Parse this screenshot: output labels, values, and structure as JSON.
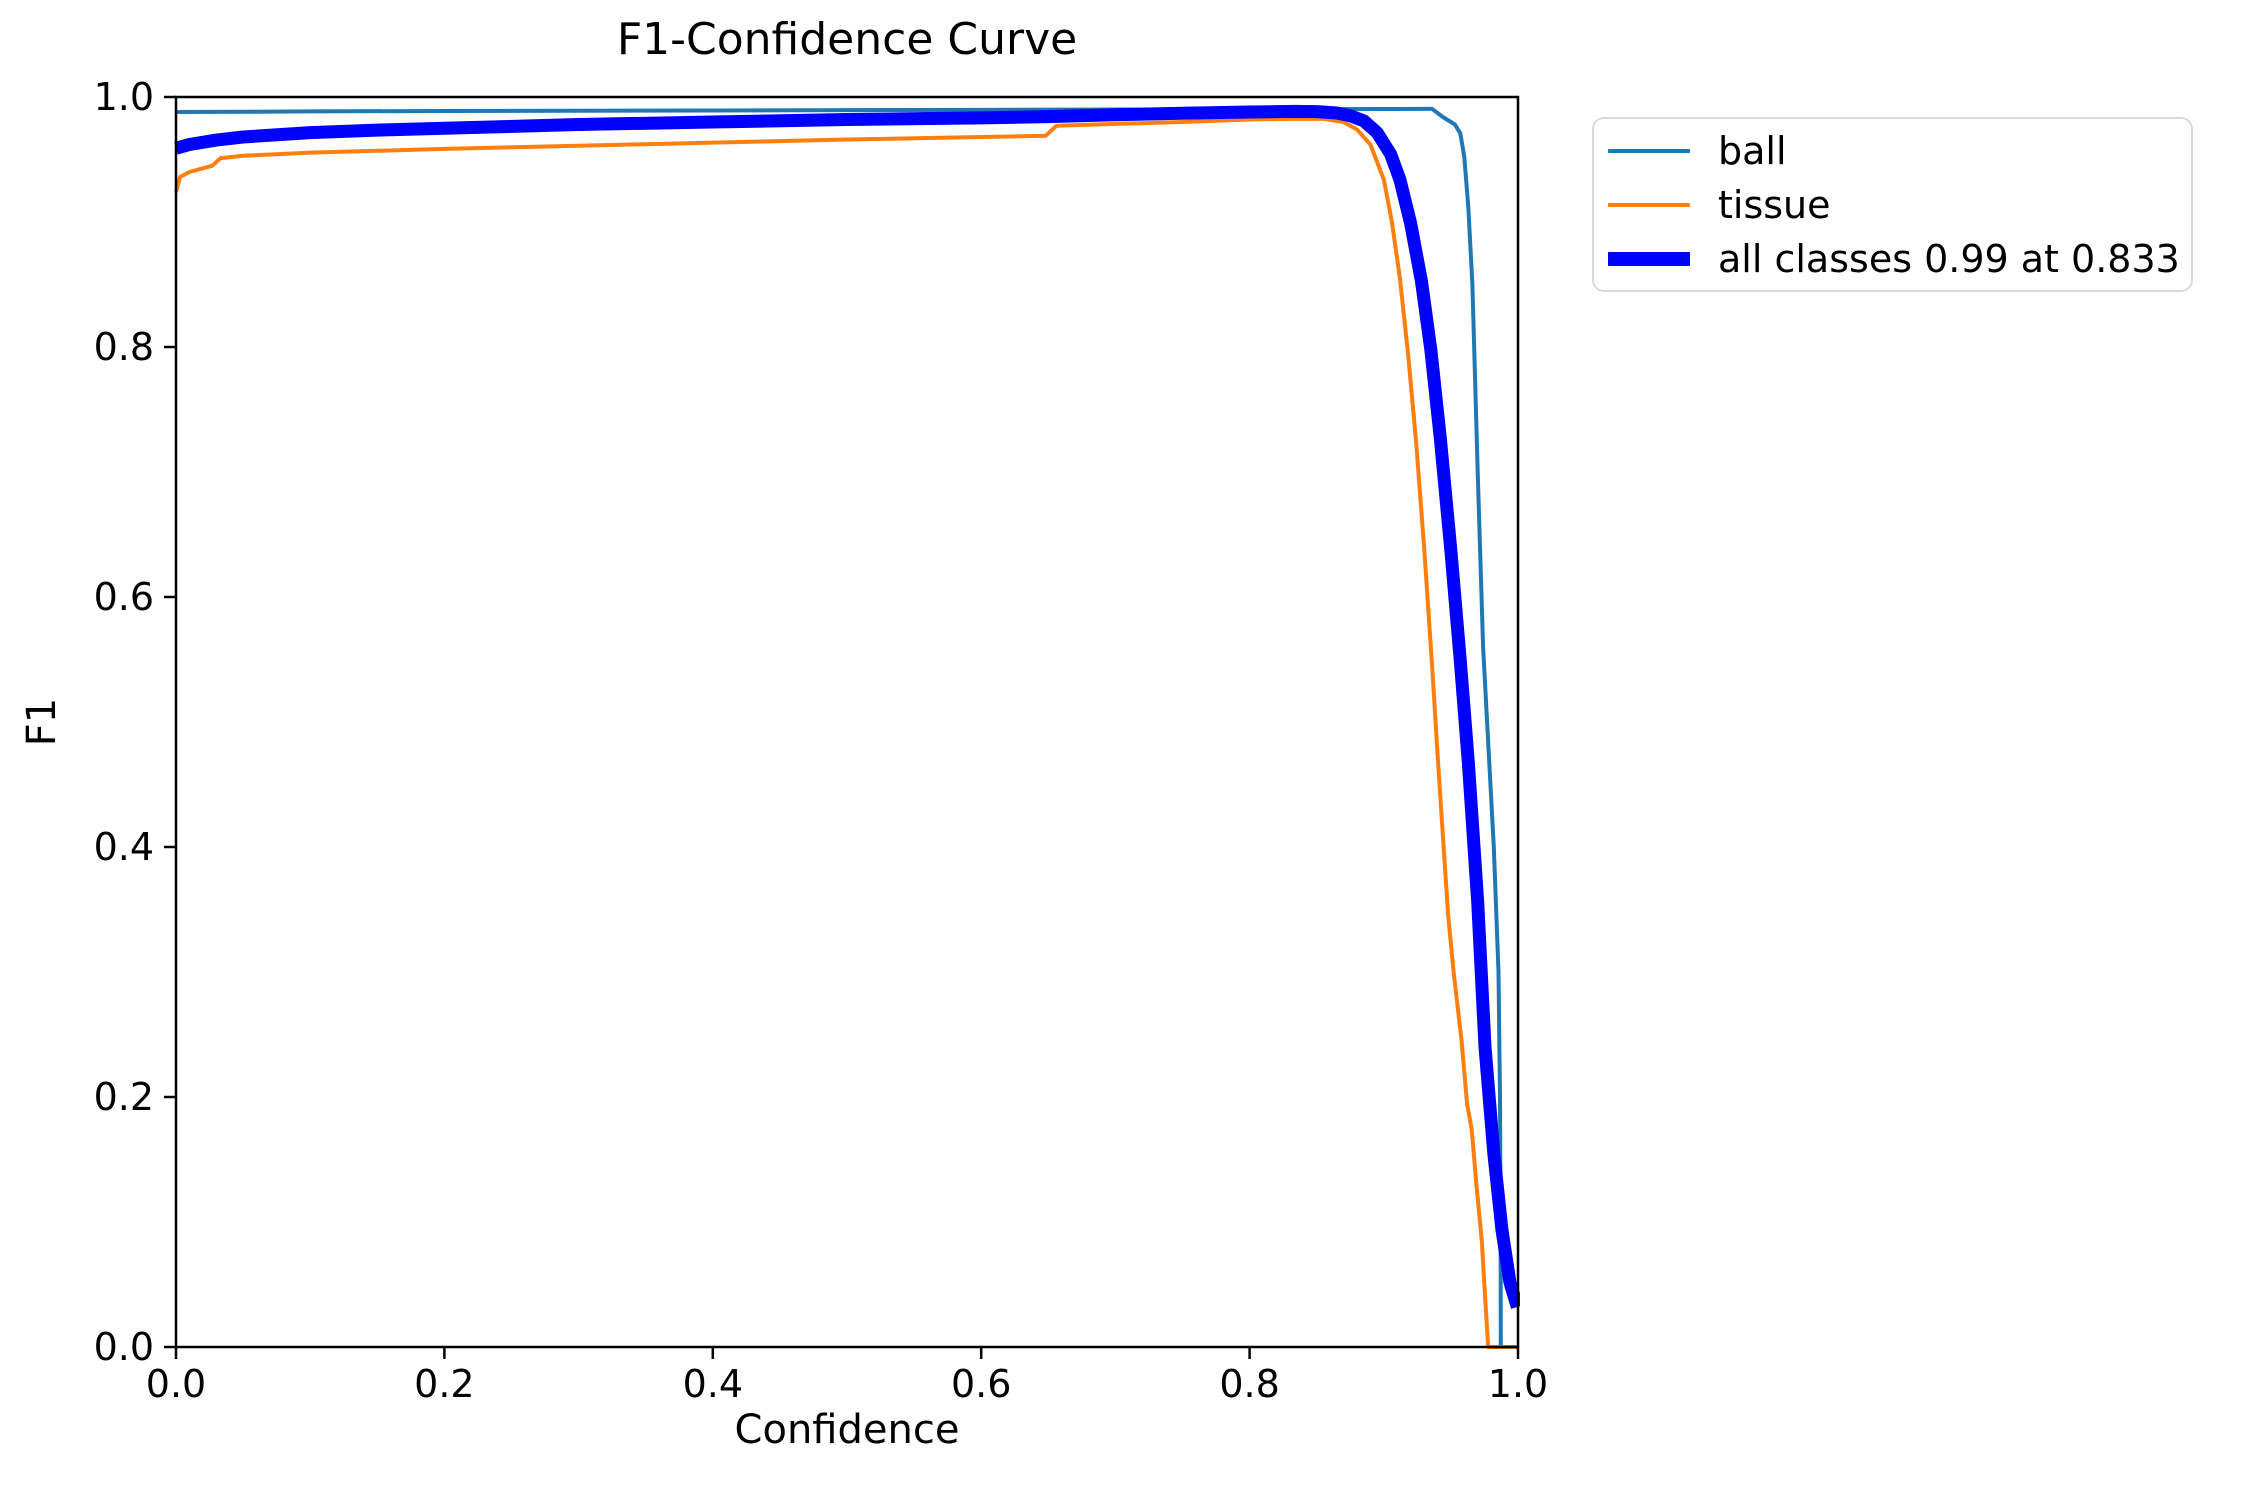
{
  "title": "F1-Confidence Curve",
  "axes": {
    "xlabel": "Confidence",
    "ylabel": "F1",
    "x_ticks": [
      "0.0",
      "0.2",
      "0.4",
      "0.6",
      "0.8",
      "1.0"
    ],
    "y_ticks": [
      "0.0",
      "0.2",
      "0.4",
      "0.6",
      "0.8",
      "1.0"
    ]
  },
  "legend": {
    "items": [
      {
        "label": "ball",
        "color": "#1f77b4",
        "thick": false
      },
      {
        "label": "tissue",
        "color": "#ff7f0e",
        "thick": false
      },
      {
        "label": "all classes 0.99 at 0.833",
        "color": "#0000ff",
        "thick": true
      }
    ]
  },
  "colors": {
    "ball": "#1f77b4",
    "tissue": "#ff7f0e",
    "all_classes": "#0000ff",
    "axis": "#000000",
    "legend_border": "#d9d9d9",
    "background": "#ffffff"
  },
  "chart_data": {
    "type": "line",
    "title": "F1-Confidence Curve",
    "xlabel": "Confidence",
    "ylabel": "F1",
    "xlim": [
      0.0,
      1.0
    ],
    "ylim": [
      0.0,
      1.0
    ],
    "grid": false,
    "legend_position": "outside upper right",
    "best_f1": 0.99,
    "best_confidence": 0.833,
    "series": [
      {
        "name": "ball",
        "color": "#1f77b4",
        "linewidth": 4,
        "points": [
          [
            0.0,
            0.988
          ],
          [
            0.05,
            0.9882
          ],
          [
            0.1,
            0.9885
          ],
          [
            0.2,
            0.9888
          ],
          [
            0.3,
            0.989
          ],
          [
            0.4,
            0.9892
          ],
          [
            0.5,
            0.9895
          ],
          [
            0.6,
            0.9897
          ],
          [
            0.7,
            0.99
          ],
          [
            0.8,
            0.9902
          ],
          [
            0.85,
            0.9903
          ],
          [
            0.9,
            0.9904
          ],
          [
            0.93,
            0.9905
          ],
          [
            0.936,
            0.9905
          ],
          [
            0.944,
            0.984
          ],
          [
            0.953,
            0.978
          ],
          [
            0.957,
            0.971
          ],
          [
            0.96,
            0.952
          ],
          [
            0.963,
            0.912
          ],
          [
            0.966,
            0.85
          ],
          [
            0.97,
            0.7
          ],
          [
            0.974,
            0.56
          ],
          [
            0.977,
            0.5
          ],
          [
            0.982,
            0.4
          ],
          [
            0.9855,
            0.3
          ],
          [
            0.9866,
            0.2
          ],
          [
            0.987,
            0.1
          ],
          [
            0.9872,
            0.0
          ]
        ]
      },
      {
        "name": "tissue",
        "color": "#ff7f0e",
        "linewidth": 4,
        "points": [
          [
            0.0,
            0.924
          ],
          [
            0.003,
            0.936
          ],
          [
            0.01,
            0.94
          ],
          [
            0.02,
            0.943
          ],
          [
            0.027,
            0.945
          ],
          [
            0.033,
            0.951
          ],
          [
            0.05,
            0.953
          ],
          [
            0.1,
            0.9555
          ],
          [
            0.15,
            0.957
          ],
          [
            0.2,
            0.9585
          ],
          [
            0.3,
            0.961
          ],
          [
            0.4,
            0.9635
          ],
          [
            0.5,
            0.966
          ],
          [
            0.6,
            0.968
          ],
          [
            0.648,
            0.969
          ],
          [
            0.656,
            0.977
          ],
          [
            0.7,
            0.9785
          ],
          [
            0.75,
            0.98
          ],
          [
            0.8,
            0.982
          ],
          [
            0.83,
            0.9825
          ],
          [
            0.855,
            0.9825
          ],
          [
            0.87,
            0.98
          ],
          [
            0.88,
            0.974
          ],
          [
            0.89,
            0.962
          ],
          [
            0.9,
            0.934
          ],
          [
            0.906,
            0.9
          ],
          [
            0.912,
            0.855
          ],
          [
            0.918,
            0.795
          ],
          [
            0.924,
            0.725
          ],
          [
            0.93,
            0.64
          ],
          [
            0.936,
            0.545
          ],
          [
            0.94,
            0.475
          ],
          [
            0.944,
            0.41
          ],
          [
            0.948,
            0.345
          ],
          [
            0.952,
            0.3
          ],
          [
            0.958,
            0.245
          ],
          [
            0.962,
            0.195
          ],
          [
            0.9655,
            0.174
          ],
          [
            0.969,
            0.13
          ],
          [
            0.973,
            0.085
          ],
          [
            0.9755,
            0.04
          ],
          [
            0.9778,
            0.0
          ],
          [
            1.0,
            0.0
          ]
        ]
      },
      {
        "name": "all classes 0.99 at 0.833",
        "color": "#0000ff",
        "linewidth": 13,
        "points": [
          [
            0.0,
            0.959
          ],
          [
            0.01,
            0.962
          ],
          [
            0.03,
            0.9655
          ],
          [
            0.05,
            0.968
          ],
          [
            0.1,
            0.9715
          ],
          [
            0.15,
            0.9735
          ],
          [
            0.2,
            0.975
          ],
          [
            0.3,
            0.978
          ],
          [
            0.4,
            0.98
          ],
          [
            0.5,
            0.982
          ],
          [
            0.6,
            0.9833
          ],
          [
            0.65,
            0.9843
          ],
          [
            0.7,
            0.9858
          ],
          [
            0.75,
            0.987
          ],
          [
            0.8,
            0.988
          ],
          [
            0.833,
            0.9885
          ],
          [
            0.85,
            0.9883
          ],
          [
            0.865,
            0.9872
          ],
          [
            0.875,
            0.985
          ],
          [
            0.885,
            0.981
          ],
          [
            0.895,
            0.9715
          ],
          [
            0.905,
            0.9545
          ],
          [
            0.912,
            0.934
          ],
          [
            0.92,
            0.899
          ],
          [
            0.928,
            0.853
          ],
          [
            0.935,
            0.798
          ],
          [
            0.942,
            0.728
          ],
          [
            0.95,
            0.637
          ],
          [
            0.957,
            0.549
          ],
          [
            0.963,
            0.468
          ],
          [
            0.97,
            0.356
          ],
          [
            0.9754,
            0.24
          ],
          [
            0.982,
            0.155
          ],
          [
            0.988,
            0.094
          ],
          [
            0.994,
            0.052
          ],
          [
            0.9995,
            0.032
          ]
        ]
      }
    ]
  }
}
